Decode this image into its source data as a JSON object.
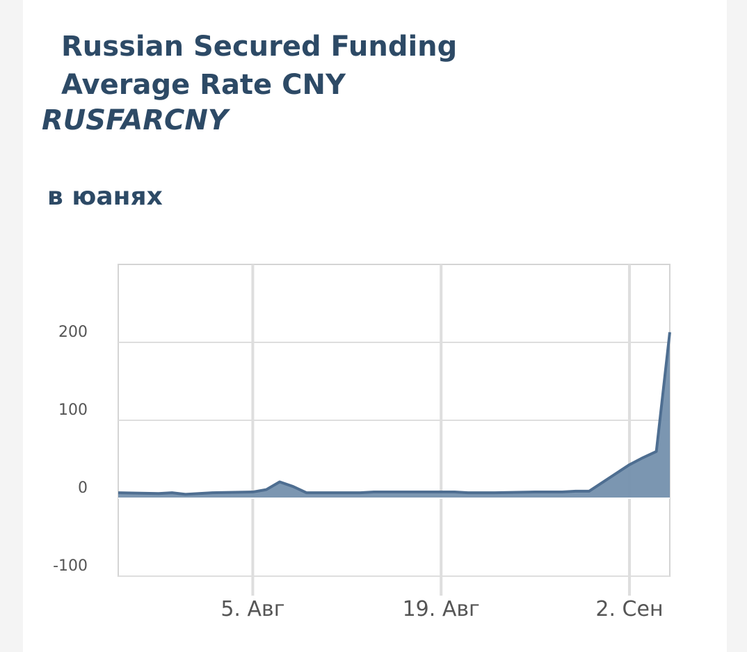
{
  "chart_data": {
    "type": "area",
    "title": "Russian Secured Funding Average Rate CNY",
    "subtitle": "RUSFARCNY",
    "y_label": "в юанях",
    "x": [
      "07-26",
      "07-29",
      "07-30",
      "07-31",
      "08-01",
      "08-02",
      "08-05",
      "08-06",
      "08-07",
      "08-08",
      "08-09",
      "08-12",
      "08-13",
      "08-14",
      "08-15",
      "08-16",
      "08-19",
      "08-20",
      "08-21",
      "08-22",
      "08-23",
      "08-26",
      "08-27",
      "08-28",
      "08-29",
      "08-30",
      "09-02",
      "09-03",
      "09-04",
      "09-05"
    ],
    "values": [
      7,
      6,
      7,
      5,
      6,
      7,
      8,
      11,
      21,
      15,
      7,
      7,
      7,
      8,
      8,
      8,
      8,
      8,
      7,
      7,
      7,
      8,
      8,
      8,
      9,
      9,
      43,
      52,
      60,
      213
    ],
    "color": "#7490ad",
    "line_color": "#4e6e91",
    "xlim": [
      "07-26",
      "09-05"
    ],
    "xticks": [
      {
        "value": "08-05",
        "label": "5. Авг"
      },
      {
        "value": "08-19",
        "label": "19. Авг"
      },
      {
        "value": "09-02",
        "label": "2. Сен"
      }
    ],
    "ylim": [
      -100,
      300
    ],
    "yticks": [
      -100,
      0,
      100,
      200
    ],
    "grid": true
  }
}
